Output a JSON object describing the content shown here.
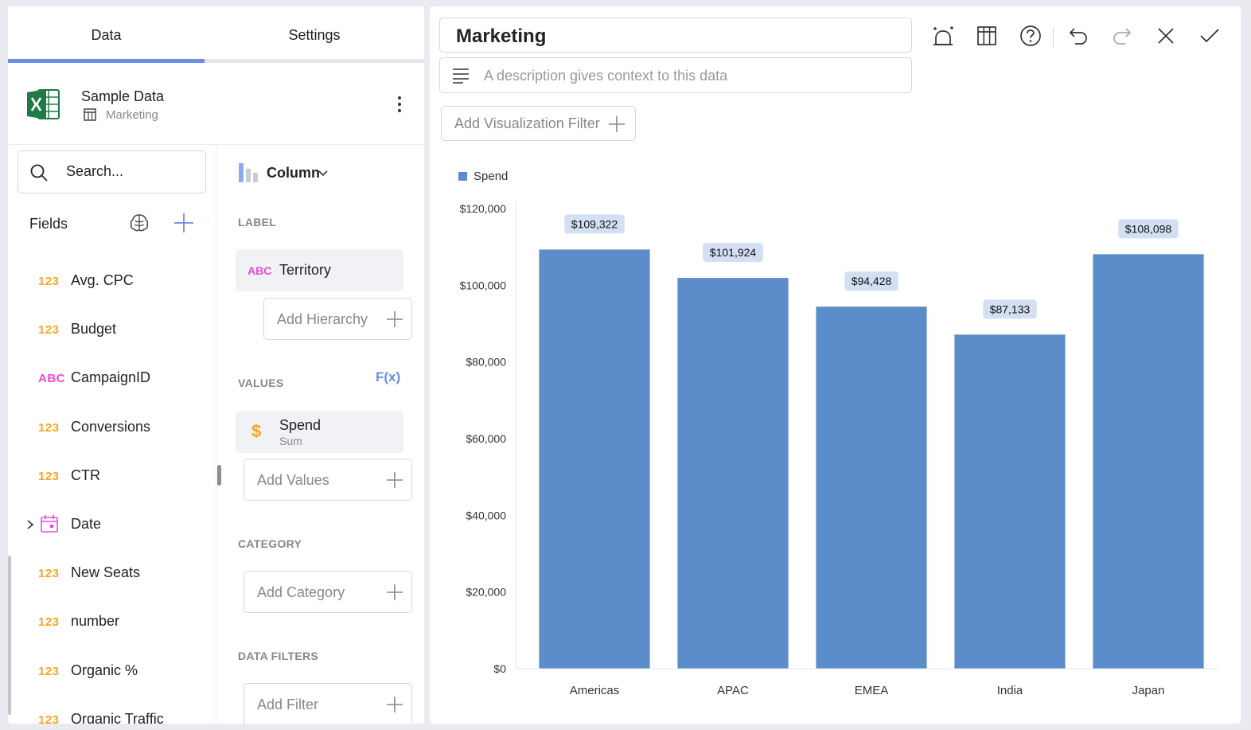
{
  "tabs": {
    "data": "Data",
    "settings": "Settings"
  },
  "source": {
    "name": "Sample Data",
    "sheet": "Marketing"
  },
  "search": {
    "placeholder": "Search..."
  },
  "fields": {
    "header": "Fields",
    "items": [
      {
        "type": "123",
        "label": "Avg. CPC"
      },
      {
        "type": "123",
        "label": "Budget"
      },
      {
        "type": "ABC",
        "label": "CampaignID"
      },
      {
        "type": "123",
        "label": "Conversions"
      },
      {
        "type": "123",
        "label": "CTR"
      },
      {
        "type": "date",
        "label": "Date"
      },
      {
        "type": "123",
        "label": "New Seats"
      },
      {
        "type": "123",
        "label": "number"
      },
      {
        "type": "123",
        "label": "Organic %"
      },
      {
        "type": "123",
        "label": "Organic Traffic"
      }
    ]
  },
  "config": {
    "viz_type": "Column",
    "label_section": "LABEL",
    "label_field": {
      "type": "ABC",
      "name": "Territory"
    },
    "add_hierarchy": "Add Hierarchy",
    "values_section": "VALUES",
    "fx": "F(x)",
    "value_field": {
      "icon": "$",
      "name": "Spend",
      "agg": "Sum"
    },
    "add_values": "Add Values",
    "category_section": "CATEGORY",
    "add_category": "Add Category",
    "filters_section": "DATA FILTERS",
    "add_filter": "Add Filter"
  },
  "editor": {
    "title": "Marketing",
    "description_placeholder": "A description gives context to this data",
    "add_viz_filter": "Add Visualization Filter"
  },
  "colors": {
    "accent": "#6b8de6",
    "bar": "#5b8dca",
    "number_type": "#f5a623",
    "text_type": "#e94bd8"
  },
  "chart_data": {
    "type": "bar",
    "legend": "top-left",
    "series": [
      {
        "name": "Spend",
        "values": [
          109322,
          101924,
          94428,
          87133,
          108098
        ]
      }
    ],
    "categories": [
      "Americas",
      "APAC",
      "EMEA",
      "India",
      "Japan"
    ],
    "data_labels": [
      "$109,322",
      "$101,924",
      "$94,428",
      "$87,133",
      "$108,098"
    ],
    "ylim": [
      0,
      120000
    ],
    "yticks": [
      "$0",
      "$20,000",
      "$40,000",
      "$60,000",
      "$80,000",
      "$100,000",
      "$120,000"
    ],
    "grid": false
  }
}
